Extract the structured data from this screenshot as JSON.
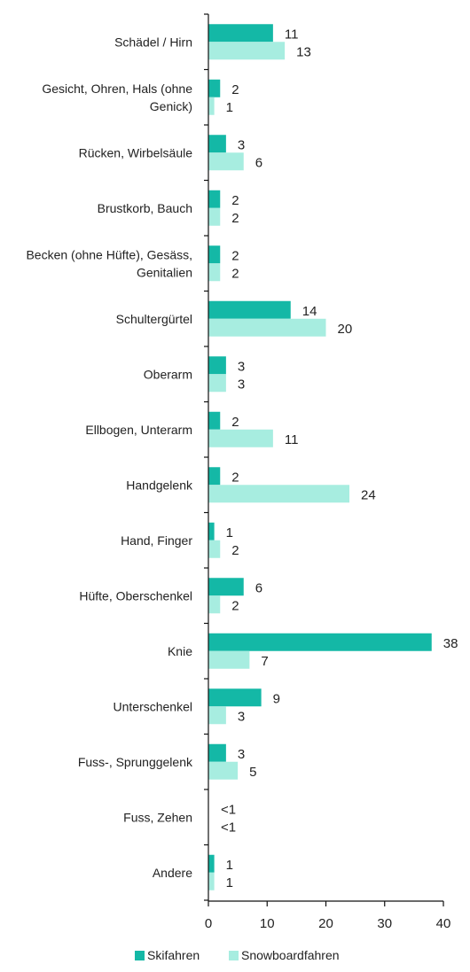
{
  "chart_data": {
    "type": "bar",
    "orientation": "horizontal",
    "categories": [
      "Schädel / Hirn",
      "Gesicht, Ohren, Hals (ohne Genick)",
      "Rücken, Wirbelsäule",
      "Brustkorb, Bauch",
      "Becken (ohne Hüfte), Gesäss, Genitalien",
      "Schultergürtel",
      "Oberarm",
      "Ellbogen, Unterarm",
      "Handgelenk",
      "Hand, Finger",
      "Hüfte, Oberschenkel",
      "Knie",
      "Unterschenkel",
      "Fuss-, Sprunggelenk",
      "Fuss, Zehen",
      "Andere"
    ],
    "series": [
      {
        "name": "Skifahren",
        "color": "#14b8a6",
        "values": [
          11,
          2,
          3,
          2,
          2,
          14,
          3,
          2,
          2,
          1,
          6,
          38,
          9,
          3,
          0,
          1
        ],
        "labels": [
          "11",
          "2",
          "3",
          "2",
          "2",
          "14",
          "3",
          "2",
          "2",
          "1",
          "6",
          "38",
          "9",
          "3",
          "<1",
          "1"
        ]
      },
      {
        "name": "Snowboardfahren",
        "color": "#a7ede0",
        "values": [
          13,
          1,
          6,
          2,
          2,
          20,
          3,
          11,
          24,
          2,
          2,
          7,
          3,
          5,
          0,
          1
        ],
        "labels": [
          "13",
          "1",
          "6",
          "2",
          "2",
          "20",
          "3",
          "11",
          "24",
          "2",
          "2",
          "7",
          "3",
          "5",
          "<1",
          "1"
        ]
      }
    ],
    "xlim": [
      0,
      40
    ],
    "xticks": [
      0,
      10,
      20,
      30,
      40
    ],
    "grid": false,
    "legend_position": "bottom",
    "title": "",
    "xlabel": "",
    "ylabel": ""
  }
}
